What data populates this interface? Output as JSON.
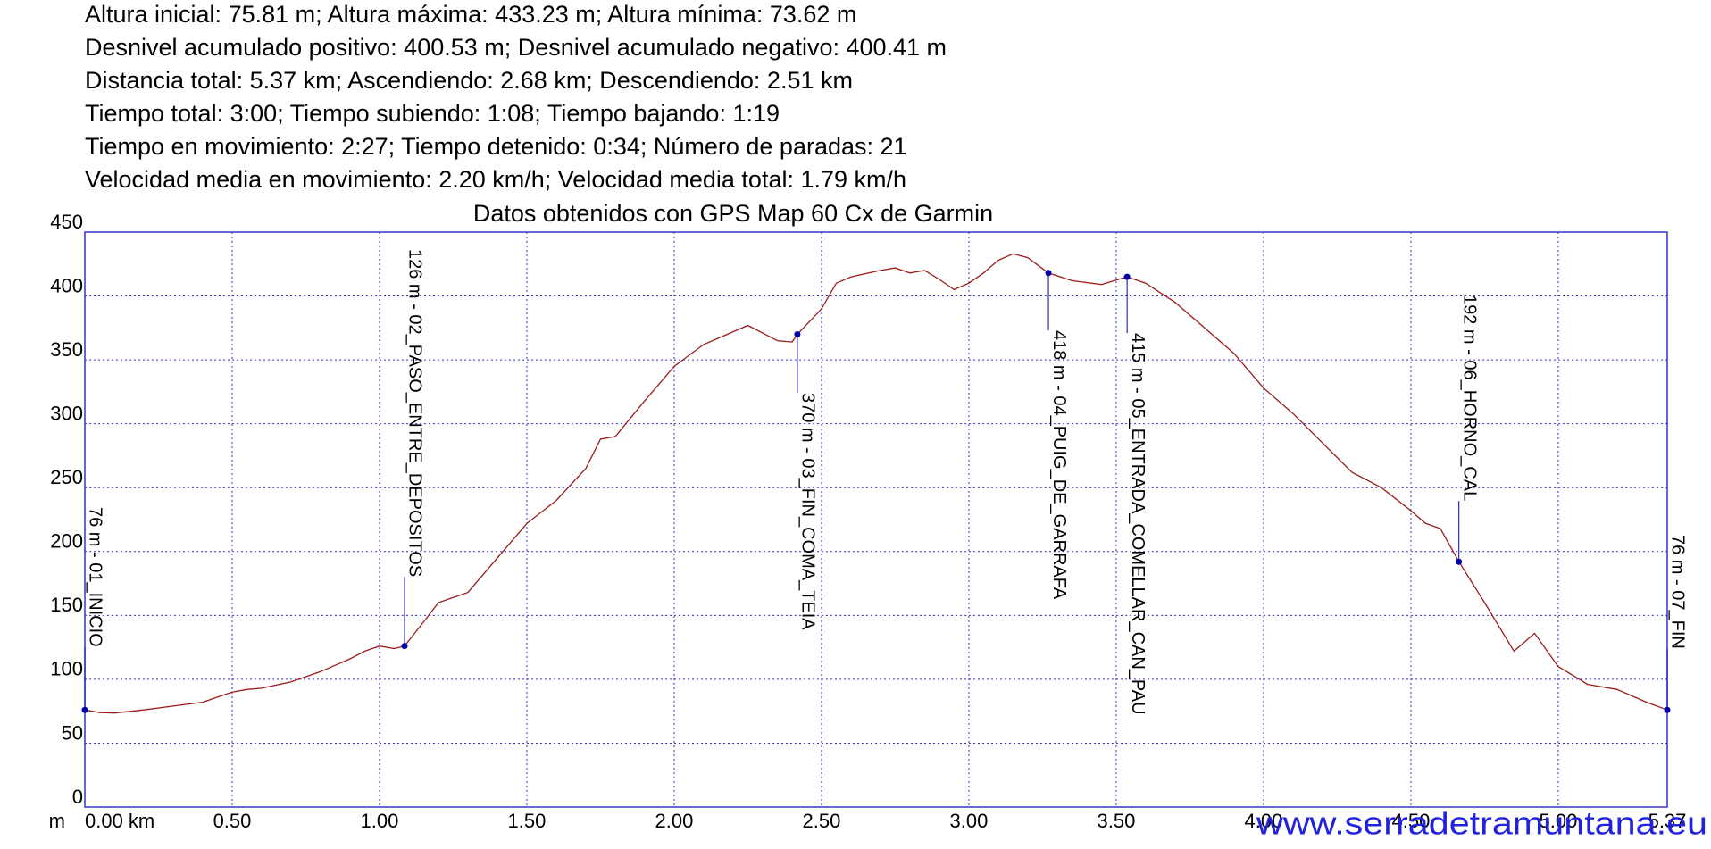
{
  "chart_data": {
    "type": "line",
    "header_lines": [
      "Altura inicial: 75.81 m; Altura máxima: 433.23 m; Altura mínima: 73.62 m",
      "Desnivel acumulado positivo: 400.53 m; Desnivel acumulado negativo: 400.41 m",
      "Distancia total: 5.37 km; Ascendiendo: 2.68 km; Descendiendo: 2.51 km",
      "Tiempo total: 3:00; Tiempo subiendo: 1:08; Tiempo bajando: 1:19",
      "Tiempo en movimiento: 2:27; Tiempo detenido: 0:34; Número de paradas: 21",
      "Velocidad media en movimiento: 2.20 km/h; Velocidad media total: 1.79 km/h"
    ],
    "subtitle": "Datos obtenidos con GPS Map 60 Cx de Garmin",
    "y_label": "m",
    "watermark": "www.serradetramuntana.eu",
    "xlim": [
      0,
      5.37
    ],
    "ylim": [
      0,
      450
    ],
    "xticks": [
      {
        "value": 0,
        "label": "0.00 km"
      },
      {
        "value": 0.5,
        "label": "0.50"
      },
      {
        "value": 1,
        "label": "1.00"
      },
      {
        "value": 1.5,
        "label": "1.50"
      },
      {
        "value": 2,
        "label": "2.00"
      },
      {
        "value": 2.5,
        "label": "2.50"
      },
      {
        "value": 3,
        "label": "3.00"
      },
      {
        "value": 3.5,
        "label": "3.50"
      },
      {
        "value": 4,
        "label": "4.00"
      },
      {
        "value": 4.5,
        "label": "4.50"
      },
      {
        "value": 5,
        "label": "5.00"
      },
      5.37
    ],
    "yticks": [
      0,
      50,
      100,
      150,
      200,
      250,
      300,
      350,
      400,
      450
    ],
    "grid": true,
    "series": [
      {
        "color": "#9b1b1b",
        "x": [
          0,
          0.05,
          0.1,
          0.2,
          0.3,
          0.4,
          0.45,
          0.5,
          0.55,
          0.6,
          0.7,
          0.8,
          0.9,
          0.95,
          1.0,
          1.05,
          1.085,
          1.15,
          1.2,
          1.25,
          1.3,
          1.4,
          1.5,
          1.6,
          1.7,
          1.75,
          1.8,
          1.9,
          2.0,
          2.1,
          2.2,
          2.25,
          2.3,
          2.35,
          2.4,
          2.418,
          2.5,
          2.55,
          2.6,
          2.7,
          2.75,
          2.8,
          2.85,
          2.9,
          2.95,
          3.0,
          3.05,
          3.1,
          3.15,
          3.2,
          3.27,
          3.35,
          3.45,
          3.537,
          3.6,
          3.7,
          3.75,
          3.8,
          3.9,
          4.0,
          4.1,
          4.2,
          4.3,
          4.4,
          4.5,
          4.55,
          4.6,
          4.663,
          4.75,
          4.85,
          4.92,
          5.0,
          5.1,
          5.2,
          5.3,
          5.37
        ],
        "values": [
          76,
          74,
          73.6,
          76,
          79,
          82,
          86,
          90,
          92,
          93,
          98,
          106,
          116,
          122,
          126,
          124,
          126,
          145,
          160,
          164,
          168,
          195,
          222,
          240,
          265,
          288,
          290,
          318,
          345,
          362,
          372,
          377,
          371,
          365,
          364,
          370,
          390,
          410,
          415,
          420,
          422,
          418,
          420,
          413,
          405,
          410,
          418,
          428,
          433,
          430,
          418,
          412,
          409,
          415,
          410,
          395,
          385,
          375,
          355,
          328,
          308,
          285,
          262,
          250,
          232,
          222,
          218,
          192,
          160,
          122,
          136,
          110,
          96,
          92,
          82,
          76
        ]
      }
    ],
    "waypoints": {
      "color": "#0000aa",
      "x": [
        0,
        1.085,
        2.418,
        3.27,
        3.537,
        4.663,
        5.37
      ],
      "values": [
        76,
        126,
        370,
        418,
        415,
        192,
        76
      ],
      "value_labels": [
        "76 m - 01_INICIO",
        "126 m - 02_PASO_ENTRE_DEPOSITOS",
        "370 m - 03_FIN_COMA_TEIA",
        "418 m - 04_PUIG_DE_GARRAFA",
        "415 m - 05_ENTRADA_COMELLAR_CAN_PAU",
        "192 m - 06_HORNO_CAL",
        "76 m - 07_FIN"
      ]
    }
  }
}
